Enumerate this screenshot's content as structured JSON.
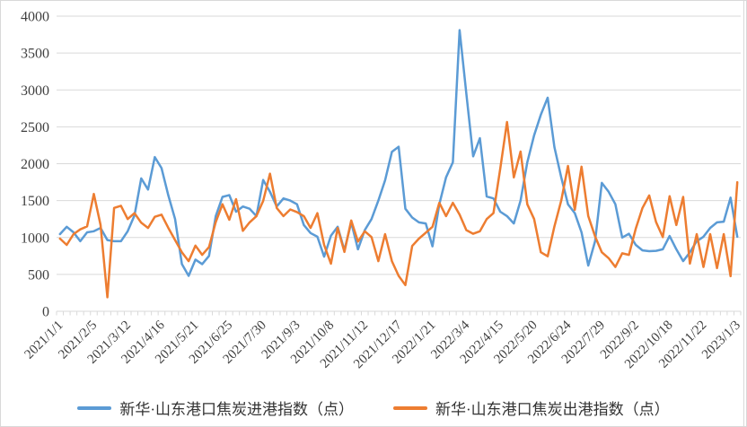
{
  "chart_data": {
    "type": "line",
    "title": "",
    "num_points": 101,
    "label_interval": 5,
    "categories_labeled": [
      "2021/1/1",
      "2021/2/5",
      "2021/3/12",
      "2021/4/16",
      "2021/5/21",
      "2021/6/25",
      "2021/7/30",
      "2021/9/3",
      "2021/10/8",
      "2021/11/12",
      "2021/12/17",
      "2022/1/21",
      "2022/3/4",
      "2022/4/15",
      "2022/5/20",
      "2022/6/24",
      "2022/7/29",
      "2022/9/2",
      "2022/10/18",
      "2022/11/22",
      "2023/1/3"
    ],
    "ylim": [
      0,
      4000
    ],
    "y_step": 500,
    "y_tick_labels": [
      "0",
      "500",
      "1000",
      "1500",
      "2000",
      "2500",
      "3000",
      "3500",
      "4000"
    ],
    "grid": true,
    "legend_position": "bottom",
    "axis_color": "#d9d9d9",
    "label_color": "#404040",
    "series": [
      {
        "name": "新华·山东港口焦炭进港指数（点）",
        "key": "inbound",
        "color": "#5B9BD5",
        "values": [
          1045,
          1145,
          1070,
          950,
          1070,
          1085,
          1130,
          965,
          950,
          950,
          1085,
          1300,
          1800,
          1650,
          2090,
          1940,
          1570,
          1250,
          640,
          480,
          700,
          640,
          750,
          1290,
          1550,
          1575,
          1350,
          1420,
          1390,
          1290,
          1780,
          1620,
          1420,
          1530,
          1500,
          1450,
          1170,
          1060,
          1010,
          740,
          1025,
          1145,
          825,
          1205,
          840,
          1100,
          1250,
          1500,
          1775,
          2160,
          2230,
          1390,
          1270,
          1205,
          1190,
          880,
          1450,
          1815,
          2020,
          3810,
          2950,
          2100,
          2345,
          1555,
          1530,
          1350,
          1290,
          1190,
          1500,
          2020,
          2385,
          2665,
          2895,
          2225,
          1815,
          1450,
          1330,
          1070,
          620,
          950,
          1740,
          1620,
          1450,
          1000,
          1050,
          900,
          825,
          815,
          820,
          840,
          1020,
          840,
          680,
          800,
          950,
          1010,
          1130,
          1205,
          1215,
          1540,
          1010
        ]
      },
      {
        "name": "新华·山东港口焦炭出港指数（点）",
        "key": "outbound",
        "color": "#ED7D31",
        "values": [
          985,
          900,
          1045,
          1110,
          1150,
          1590,
          1170,
          190,
          1400,
          1430,
          1250,
          1330,
          1200,
          1130,
          1280,
          1310,
          1130,
          965,
          800,
          680,
          890,
          765,
          870,
          1210,
          1450,
          1240,
          1520,
          1090,
          1205,
          1290,
          1495,
          1865,
          1400,
          1290,
          1380,
          1345,
          1290,
          1130,
          1330,
          900,
          645,
          1130,
          805,
          1230,
          945,
          1085,
          1005,
          680,
          1045,
          680,
          480,
          355,
          885,
          985,
          1065,
          1145,
          1470,
          1290,
          1470,
          1310,
          1100,
          1050,
          1085,
          1250,
          1330,
          1935,
          2565,
          1815,
          2165,
          1450,
          1250,
          800,
          745,
          1150,
          1500,
          1970,
          1375,
          1960,
          1290,
          1015,
          800,
          720,
          600,
          785,
          765,
          1120,
          1400,
          1570,
          1210,
          1005,
          1560,
          1170,
          1550,
          645,
          1045,
          600,
          1045,
          585,
          1045,
          475,
          1750
        ]
      }
    ]
  }
}
